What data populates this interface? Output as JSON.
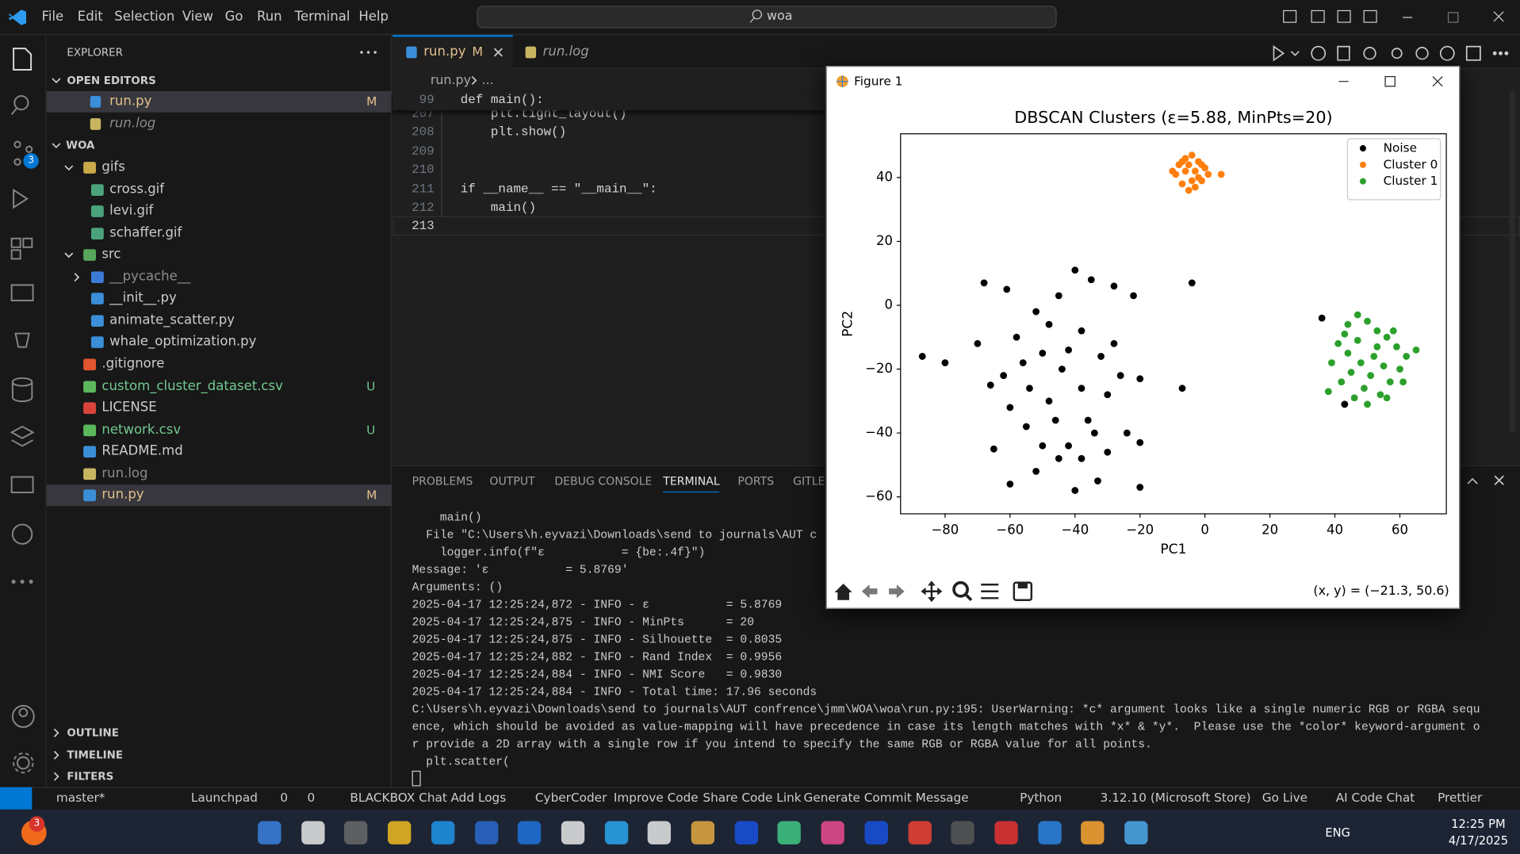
{
  "title_bar": {
    "menu": [
      "File",
      "Edit",
      "Selection",
      "View",
      "Go",
      "Run",
      "Terminal",
      "Help"
    ],
    "search": "woa"
  },
  "activity_bar": {
    "badge": 3
  },
  "sidebar": {
    "title": "EXPLORER",
    "open_editors": {
      "label": "OPEN EDITORS",
      "items": [
        {
          "name": "run.py",
          "badge": "M",
          "color": "#e2c08d",
          "icon": "#3b8ed8",
          "selected": true
        },
        {
          "name": "run.log",
          "color": "#8c8c8c",
          "icon": "#c8b560"
        }
      ]
    },
    "folder": "WOA",
    "tree": [
      {
        "name": "gifs",
        "kind": "folder",
        "open": true,
        "depth": 0,
        "icon": "#c9a94a"
      },
      {
        "name": "cross.gif",
        "kind": "file",
        "depth": 1,
        "icon": "#4aa37a"
      },
      {
        "name": "levi.gif",
        "kind": "file",
        "depth": 1,
        "icon": "#4aa37a"
      },
      {
        "name": "schaffer.gif",
        "kind": "file",
        "depth": 1,
        "icon": "#4aa37a"
      },
      {
        "name": "src",
        "kind": "folder",
        "open": true,
        "depth": 0,
        "icon": "#58a55c"
      },
      {
        "name": "__pycache__",
        "kind": "folder",
        "open": false,
        "depth": 1,
        "icon": "#3b7bd8",
        "color": "#8c8c8c"
      },
      {
        "name": "__init__.py",
        "kind": "file",
        "depth": 1,
        "icon": "#3b8ed8"
      },
      {
        "name": "animate_scatter.py",
        "kind": "file",
        "depth": 1,
        "icon": "#3b8ed8"
      },
      {
        "name": "whale_optimization.py",
        "kind": "file",
        "depth": 1,
        "icon": "#3b8ed8"
      },
      {
        "name": ".gitignore",
        "kind": "file",
        "depth": 0,
        "icon": "#e0552f"
      },
      {
        "name": "custom_cluster_dataset.csv",
        "kind": "file",
        "depth": 0,
        "icon": "#5cb85c",
        "badge": "U",
        "color": "#73c991"
      },
      {
        "name": "LICENSE",
        "kind": "file",
        "depth": 0,
        "icon": "#d9443a"
      },
      {
        "name": "network.csv",
        "kind": "file",
        "depth": 0,
        "icon": "#5cb85c",
        "badge": "U",
        "color": "#73c991"
      },
      {
        "name": "README.md",
        "kind": "file",
        "depth": 0,
        "icon": "#3b8ed8"
      },
      {
        "name": "run.log",
        "kind": "file",
        "depth": 0,
        "icon": "#c8b560",
        "color": "#8c8c8c"
      },
      {
        "name": "run.py",
        "kind": "file",
        "depth": 0,
        "icon": "#3b8ed8",
        "badge": "M",
        "color": "#e2c08d",
        "selected": true
      }
    ],
    "sections": [
      "OUTLINE",
      "TIMELINE",
      "FILTERS"
    ]
  },
  "editor": {
    "tabs": [
      {
        "name": "run.py",
        "badge": "M",
        "active": true
      },
      {
        "name": "run.log"
      }
    ],
    "breadcrumb": [
      "run.py",
      "..."
    ],
    "sticky": {
      "number": 99,
      "text": "def main():"
    },
    "lines": [
      {
        "number": 207,
        "text": "    plt.tight_layout()"
      },
      {
        "number": 208,
        "text": "    plt.show()"
      },
      {
        "number": 209
      },
      {
        "number": 210
      },
      {
        "number": 211,
        "text": "if __name__ == \"__main__\":"
      },
      {
        "number": 212,
        "text": "    main()"
      },
      {
        "number": 213,
        "current": true
      }
    ]
  },
  "panel": {
    "tabs": [
      "PROBLEMS",
      "OUTPUT",
      "DEBUG CONSOLE",
      "TERMINAL",
      "PORTS",
      "GITLEN"
    ],
    "active_tab": 3,
    "terminal": [
      "    main()",
      "  File \"C:\\Users\\h.eyvazi\\Downloads\\send to journals\\AUT c",
      "    logger.info(f\"ε           = {be:.4f}\")",
      "Message: 'ε           = 5.8769'",
      "Arguments: ()",
      "2025-04-17 12:25:24,872 - INFO - ε           = 5.8769",
      "2025-04-17 12:25:24,875 - INFO - MinPts      = 20",
      "2025-04-17 12:25:24,875 - INFO - Silhouette  = 0.8035",
      "2025-04-17 12:25:24,882 - INFO - Rand Index  = 0.9956",
      "2025-04-17 12:25:24,884 - INFO - NMI Score   = 0.9830",
      "2025-04-17 12:25:24,884 - INFO - Total time: 17.96 seconds",
      "C:\\Users\\h.eyvazi\\Downloads\\send to journals\\AUT confrence\\jmm\\WOA\\woa\\run.py:195: UserWarning: *c* argument looks like a single numeric RGB or RGBA sequ",
      "ence, which should be avoided as value-mapping will have precedence in case its length matches with *x* & *y*.  Please use the *color* keyword-argument o",
      "r provide a 2D array with a single row if you intend to specify the same RGB or RGBA value for all points.",
      "  plt.scatter("
    ]
  },
  "figure_window": {
    "title": "Figure 1",
    "coordinates": "(x, y) = (−21.3, 50.6)"
  },
  "chart_data": {
    "type": "scatter",
    "title": "DBSCAN Clusters (ε=5.88, MinPts=20)",
    "x_label": "PC1",
    "y_label": "PC2",
    "xlim": [
      -93.7,
      74.3
    ],
    "ylim": [
      -65.3,
      53.7
    ],
    "xticks": [
      {
        "value": -80,
        "label": "−80"
      },
      {
        "value": -60,
        "label": "−60"
      },
      {
        "value": -40,
        "label": "−40"
      },
      {
        "value": -20,
        "label": "−20"
      },
      0,
      20,
      40,
      60
    ],
    "yticks": [
      {
        "value": -60,
        "label": "−60"
      },
      {
        "value": -40,
        "label": "−40"
      },
      {
        "value": -20,
        "label": "−20"
      },
      0,
      20,
      40
    ],
    "legend": "upper right",
    "series": [
      {
        "name": "Noise",
        "color": "#000000",
        "x": [
          -87,
          -80,
          -68,
          -61,
          -52,
          -45,
          -40,
          -35,
          -28,
          -22,
          -4,
          -7,
          -66,
          -70,
          -58,
          -50,
          -44,
          -38,
          -32,
          -26,
          -20,
          -60,
          -55,
          -48,
          -42,
          -36,
          -30,
          -24,
          -20,
          -65,
          -60,
          -52,
          -45,
          -40,
          -33,
          -20,
          -56,
          -48,
          -42,
          -38,
          -34,
          -28,
          -62,
          -54,
          -46,
          -50,
          -38,
          -30,
          36,
          43
        ],
        "values": [
          -16,
          -18,
          7,
          5,
          -2,
          3,
          11,
          8,
          6,
          3,
          7,
          -26,
          -25,
          -12,
          -10,
          -15,
          -20,
          -8,
          -16,
          -22,
          -23,
          -32,
          -38,
          -30,
          -44,
          -36,
          -28,
          -40,
          -43,
          -45,
          -56,
          -52,
          -48,
          -58,
          -55,
          -57,
          -18,
          -6,
          -14,
          -26,
          -40,
          -12,
          -22,
          -26,
          -36,
          -44,
          -48,
          -46,
          -4,
          -31
        ]
      },
      {
        "name": "Cluster 0",
        "color": "#ff7f0e",
        "x": [
          -9,
          -8,
          -6,
          -4,
          -2,
          0,
          1,
          -1,
          -3,
          -5,
          -7,
          -10,
          -6,
          -3,
          -2,
          -5,
          -4,
          -7,
          -1,
          5
        ],
        "values": [
          41,
          44,
          46,
          47,
          45,
          43,
          41,
          39,
          37,
          36,
          38,
          42,
          42,
          42,
          40,
          44,
          39,
          45,
          44,
          41
        ]
      },
      {
        "name": "Cluster 1",
        "color": "#2ca02c",
        "x": [
          41,
          44,
          47,
          50,
          53,
          56,
          59,
          62,
          65,
          60,
          57,
          54,
          50,
          46,
          42,
          39,
          38,
          44,
          48,
          52,
          55,
          51,
          47,
          53,
          58,
          45,
          49,
          56,
          43,
          61
        ],
        "values": [
          -12,
          -6,
          -3,
          -5,
          -8,
          -10,
          -13,
          -16,
          -14,
          -20,
          -24,
          -28,
          -31,
          -29,
          -24,
          -18,
          -27,
          -15,
          -18,
          -16,
          -19,
          -22,
          -11,
          -13,
          -8,
          -21,
          -26,
          -29,
          -9,
          -24
        ]
      }
    ]
  },
  "status_bar": {
    "branch": "master*",
    "errors": 0,
    "warnings": 0,
    "items_left": [
      "Launchpad",
      "BLACKBOX Chat",
      "Add Logs",
      "CyberCoder",
      "Improve Code",
      "Share Code Link",
      "Generate Commit Message"
    ],
    "items_right": [
      "Python",
      "3.12.10 (Microsoft Store)",
      "Go Live",
      "AI Code Chat",
      "Prettier"
    ]
  },
  "taskbar": {
    "badge": 3,
    "language": "ENG",
    "time": "12:25 PM",
    "date": "4/17/2025"
  }
}
